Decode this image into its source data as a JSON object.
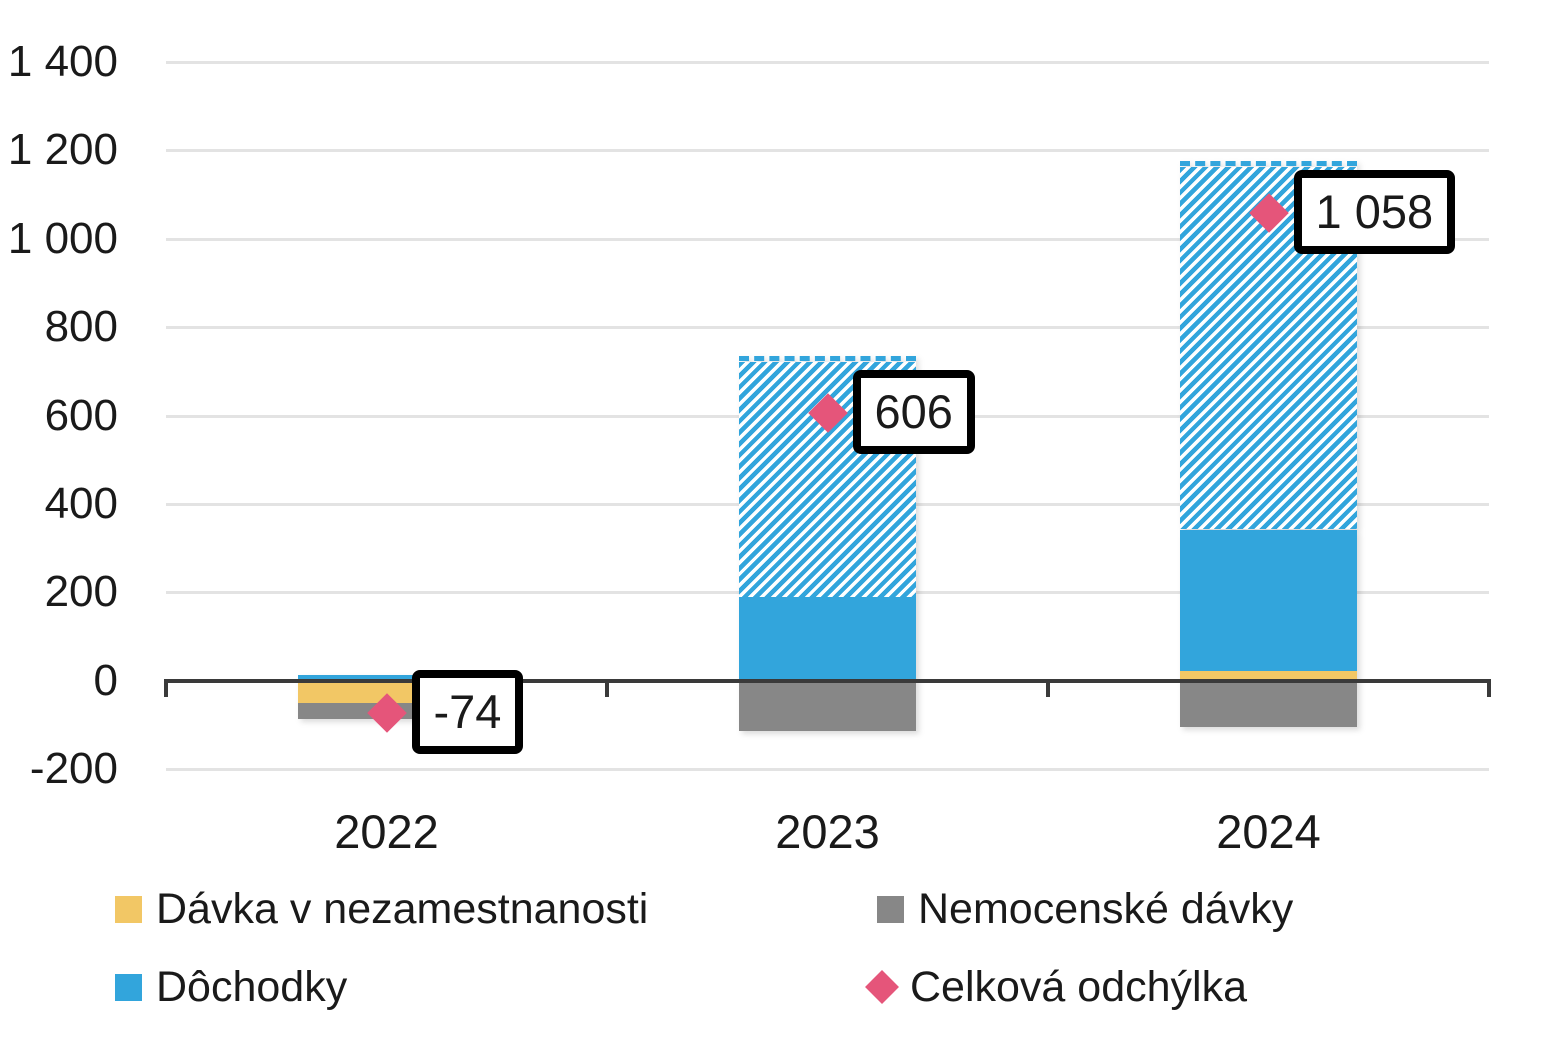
{
  "chart_data": {
    "type": "bar",
    "variant": "stacked-columns-with-total-markers",
    "categories": [
      "2022",
      "2023",
      "2024"
    ],
    "series": [
      {
        "name": "Dávka v nezamestnanosti",
        "color": "#F2C765",
        "pattern": "solid",
        "values": [
          -50,
          0,
          22
        ]
      },
      {
        "name": "Nemocenské dávky",
        "color": "#878787",
        "pattern": "solid",
        "values": [
          -36,
          -114,
          -104
        ]
      },
      {
        "name": "Dôchodky",
        "color": "#32A5DC",
        "pattern": "solid",
        "values": [
          12,
          190,
          320
        ]
      },
      {
        "name": "Dôchodky (šrafovaná časť)",
        "color": "#32A5DC",
        "pattern": "diagonal-hatch",
        "values": [
          0,
          530,
          820
        ],
        "in_legend": false
      }
    ],
    "points_series": {
      "name": "Celková odchýlka",
      "color": "#E5557A",
      "marker": "diamond",
      "values": [
        -74,
        606,
        1058
      ],
      "labels": [
        "-74",
        "606",
        "1 058"
      ]
    },
    "ylim": [
      -200,
      1400
    ],
    "ytick_step": 200,
    "ytick_labels": [
      "1 400",
      "1 200",
      "1 000",
      "800",
      "600",
      "400",
      "200",
      "0",
      "-200"
    ],
    "grid": "horizontal-light",
    "legend_position": "bottom-two-columns",
    "colors": {
      "gridline": "#E3E3E3",
      "axis": "#3A3A3A",
      "label_box_bg": "#FFFFFF",
      "label_box_border": "#000000",
      "text": "#1A1A1A"
    }
  }
}
